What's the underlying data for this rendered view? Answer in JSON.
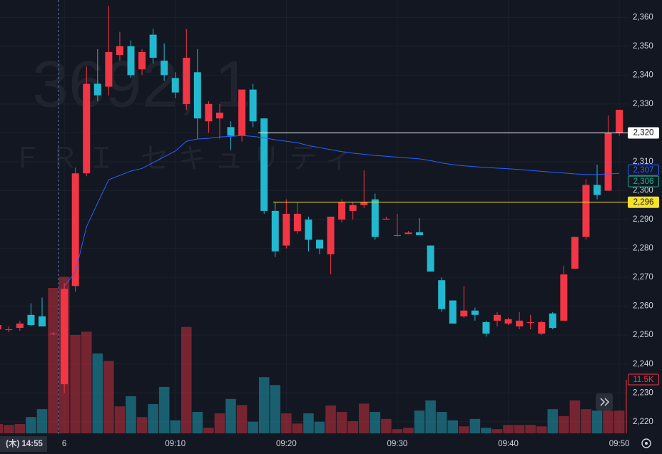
{
  "chart_data": {
    "type": "candlestick",
    "watermark_symbol": "3692, 1",
    "watermark_name": "ＦＲＩ セキュリティ",
    "crosshair_label": "(木) 14:55",
    "categories": [
      null,
      null,
      null,
      null,
      null,
      null,
      "6",
      null,
      null,
      null,
      null,
      null,
      null,
      null,
      null,
      null,
      "09:10",
      null,
      null,
      null,
      null,
      null,
      null,
      null,
      null,
      null,
      "09:20",
      null,
      null,
      null,
      null,
      null,
      null,
      null,
      null,
      null,
      "09:30",
      null,
      null,
      null,
      null,
      null,
      null,
      null,
      null,
      null,
      "09:40",
      null,
      null,
      null,
      null,
      null,
      null,
      null,
      null,
      null,
      "09:50"
    ],
    "open": [
      2252,
      2252,
      2252.5,
      2257,
      2256.5,
      2250.5,
      2233,
      2267,
      2306,
      2337,
      2336,
      2347,
      2350,
      2342,
      2354,
      2345,
      2339,
      2330,
      2341,
      2324,
      2325,
      2322,
      2319,
      2335,
      2325,
      2293,
      2281,
      2286,
      2290,
      2283,
      2278,
      2290,
      2293,
      2295,
      2297,
      2290,
      2284.6,
      2285,
      2285.6,
      2281,
      2269,
      2262,
      2256.5,
      2258.5,
      2254.5,
      2255,
      2254,
      2253,
      2254.5,
      2250.5,
      2257.5,
      2255,
      2273,
      2284,
      2302,
      2300,
      2320
    ],
    "high": [
      2254,
      2253,
      2255,
      2261,
      2263,
      2251,
      2268,
      2308,
      2343,
      2349,
      2364,
      2355,
      2352,
      2349,
      2356,
      2351,
      2341,
      2356,
      2349,
      2331,
      2330,
      2324,
      2335,
      2337,
      2325,
      2296,
      2297,
      2296,
      2291,
      2283,
      2291,
      2297,
      2296,
      2307,
      2299,
      2291,
      2292,
      2286,
      2290.5,
      2281,
      2270,
      2262,
      2267,
      2259.5,
      2255,
      2258,
      2256,
      2258,
      2257,
      2255,
      2258,
      2274,
      2284,
      2304,
      2309,
      2326,
      2328
    ],
    "low": [
      2251,
      2251,
      2251.5,
      2253,
      2253,
      2250,
      2230,
      2265,
      2305,
      2331,
      2333,
      2345,
      2339,
      2340,
      2344,
      2338,
      2332,
      2328,
      2318,
      2320,
      2318,
      2314,
      2317,
      2322,
      2292,
      2277,
      2280,
      2285,
      2279,
      2278,
      2271,
      2289,
      2290,
      2294,
      2283,
      2290,
      2284,
      2285,
      2284.6,
      2272,
      2258,
      2254,
      2256,
      2255,
      2249.5,
      2253,
      2253.5,
      2252,
      2252,
      2250,
      2252,
      2255,
      2273,
      2283,
      2297,
      2300,
      2319
    ],
    "close": [
      2253.5,
      2252,
      2254,
      2253.5,
      2253,
      2250.5,
      2266,
      2306,
      2337,
      2333,
      2348,
      2350,
      2340,
      2348,
      2346,
      2340,
      2334,
      2346,
      2325,
      2330,
      2327,
      2319,
      2335,
      2324,
      2293,
      2279,
      2292,
      2292,
      2283,
      2280,
      2291,
      2296,
      2295,
      2296,
      2284,
      2290.3,
      2284.6,
      2285.5,
      2284.6,
      2272,
      2259,
      2254,
      2258.5,
      2257,
      2250.5,
      2257,
      2255.5,
      2255,
      2254.5,
      2254.5,
      2252.5,
      2271,
      2284,
      2302,
      2298.5,
      2320,
      2328
    ],
    "volume": [
      2.0,
      1.8,
      2.0,
      3.5,
      5.2,
      31.3,
      33.7,
      21.2,
      21.9,
      17.2,
      15.6,
      5.8,
      8.0,
      3.5,
      6.3,
      10.0,
      2.8,
      22.9,
      4.6,
      1.2,
      4.3,
      7.4,
      6.1,
      2.5,
      12.1,
      10.4,
      4.3,
      2.1,
      4.3,
      2.5,
      6.0,
      4.6,
      2.6,
      6.4,
      4.6,
      3.1,
      0.9,
      1.2,
      4.9,
      7.1,
      4.6,
      2.8,
      1.5,
      3.1,
      1.2,
      0.9,
      1.8,
      1.8,
      1.8,
      1.5,
      5.2,
      3.7,
      7.1,
      5.2,
      4.9,
      4.9,
      4.9
    ],
    "vwap": [
      null,
      null,
      null,
      null,
      null,
      null,
      2267,
      2271.8,
      2287.5,
      2295.7,
      2303.8,
      2305.3,
      2306.8,
      2307.7,
      2309.7,
      2311.7,
      2313.7,
      2317.1,
      2317.9,
      2318.1,
      2318.6,
      2318.8,
      2319.1,
      2318.8,
      2318.3,
      2317.6,
      2317.1,
      2316.6,
      2315.6,
      2314.9,
      2314.2,
      2313.5,
      2313,
      2312.6,
      2312.2,
      2311.9,
      2311.6,
      2311.3,
      2311,
      2310.4,
      2309.6,
      2309,
      2308.6,
      2308.3,
      2308,
      2307.8,
      2307.6,
      2307.3,
      2307,
      2306.7,
      2306.4,
      2306.1,
      2305.8,
      2305.6,
      2305.6,
      2305.8,
      2306
    ],
    "vwap_color": "#2962ff",
    "up_color": "#f23645",
    "down_color": "#22b8cf",
    "ylim": [
      2216,
      2366
    ],
    "yticks": [
      {
        "value": 2220,
        "label": "2,220"
      },
      {
        "value": 2230,
        "label": "2,230"
      },
      {
        "value": 2240,
        "label": "2,240"
      },
      {
        "value": 2250,
        "label": "2,250"
      },
      {
        "value": 2260,
        "label": "2,260"
      },
      {
        "value": 2270,
        "label": "2,270"
      },
      {
        "value": 2280,
        "label": "2,280"
      },
      {
        "value": 2290,
        "label": "2,290"
      },
      {
        "value": 2300,
        "label": "2,300"
      },
      {
        "value": 2310,
        "label": "2,310"
      },
      {
        "value": 2320,
        "label": "2,320"
      },
      {
        "value": 2330,
        "label": "2,330"
      },
      {
        "value": 2340,
        "label": "2,340"
      },
      {
        "value": 2350,
        "label": "2,350"
      },
      {
        "value": 2360,
        "label": "2,360"
      }
    ],
    "volume_lim": [
      0,
      93.3
    ],
    "volume_label": {
      "value": 11.5,
      "label": "11.5K"
    },
    "price_lines": [
      {
        "value": 2320,
        "label": "2,320",
        "color": "#ffffff"
      },
      {
        "value": 2296,
        "label": "2,296",
        "color": "#f7e02a"
      }
    ],
    "ma_labels": [
      {
        "value": 2307,
        "label": "2,307",
        "color": "#2962ff"
      },
      {
        "value": 2306,
        "label": "2,306",
        "color": "#22ab94"
      }
    ],
    "grid": true
  }
}
